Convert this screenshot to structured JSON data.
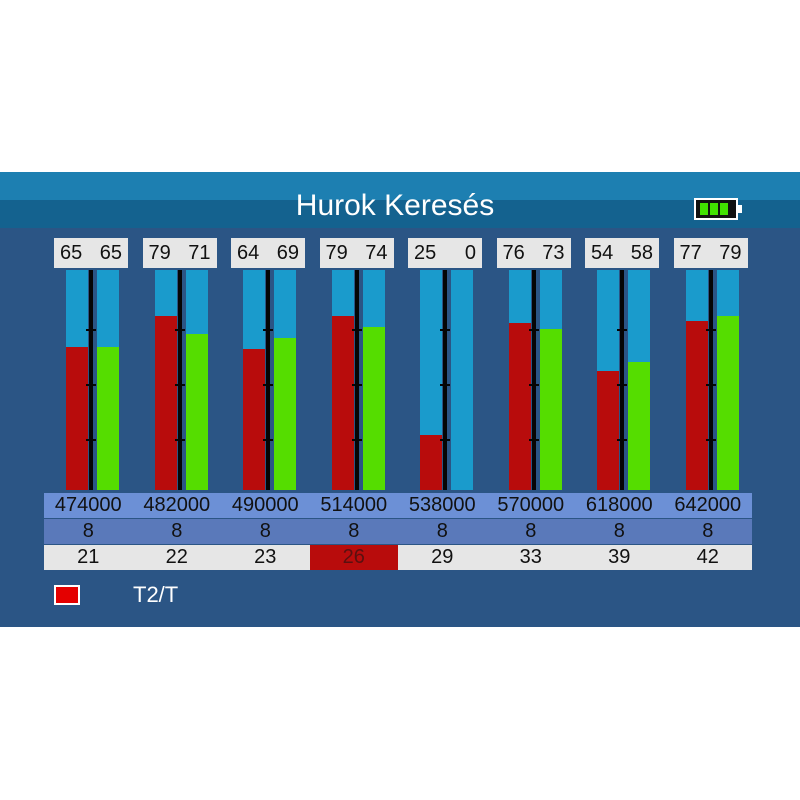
{
  "header": {
    "title": "Hurok Keresés",
    "battery_icon": "battery-icon",
    "battery_cells": 3
  },
  "colors": {
    "left_bar": "#b80c0c",
    "right_bar": "#55dd00",
    "bar_background": "#1a9bcc",
    "selected": "#b80c0c"
  },
  "channels": [
    {
      "left": "65",
      "right": "65",
      "frequency": "474000",
      "bandwidth": "8",
      "channel": "21",
      "left_level": 65,
      "right_level": 65
    },
    {
      "left": "79",
      "right": "71",
      "frequency": "482000",
      "bandwidth": "8",
      "channel": "22",
      "left_level": 79,
      "right_level": 71
    },
    {
      "left": "64",
      "right": "69",
      "frequency": "490000",
      "bandwidth": "8",
      "channel": "23",
      "left_level": 64,
      "right_level": 69
    },
    {
      "left": "79",
      "right": "74",
      "frequency": "514000",
      "bandwidth": "8",
      "channel": "26",
      "left_level": 79,
      "right_level": 74,
      "selected": true
    },
    {
      "left": "25",
      "right": "0",
      "frequency": "538000",
      "bandwidth": "8",
      "channel": "29",
      "left_level": 25,
      "right_level": 0
    },
    {
      "left": "76",
      "right": "73",
      "frequency": "570000",
      "bandwidth": "8",
      "channel": "33",
      "left_level": 76,
      "right_level": 73
    },
    {
      "left": "54",
      "right": "58",
      "frequency": "618000",
      "bandwidth": "8",
      "channel": "39",
      "left_level": 54,
      "right_level": 58
    },
    {
      "left": "77",
      "right": "79",
      "frequency": "642000",
      "bandwidth": "8",
      "channel": "42",
      "left_level": 77,
      "right_level": 79
    }
  ],
  "legend": {
    "label": "T2/T",
    "color": "#e40000"
  }
}
